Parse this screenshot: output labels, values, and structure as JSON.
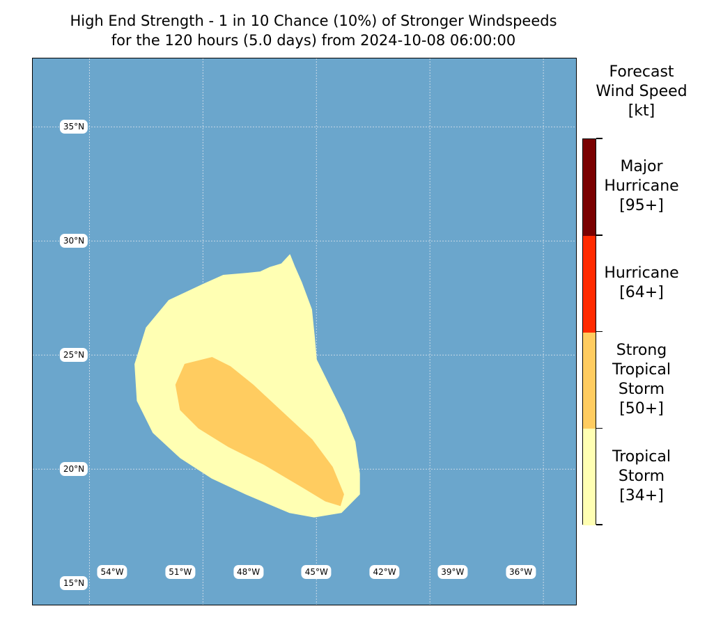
{
  "title": {
    "line1": "High End Strength - 1 in 10 Chance (10%) of Stronger Windspeeds",
    "line2": "for the 120 hours (5.0 days) from 2024-10-08 06:00:00"
  },
  "map": {
    "ocean_color": "#6ba6cc",
    "gridline_color": "#c9d9e6",
    "lat_labels": [
      "35°N",
      "30°N",
      "25°N",
      "20°N",
      "15°N"
    ],
    "lon_labels": [
      "54°W",
      "51°W",
      "48°W",
      "45°W",
      "42°W",
      "39°W",
      "36°W"
    ],
    "lat_range": [
      14.0,
      38.0
    ],
    "lon_range": [
      57.5,
      33.5
    ],
    "wind_areas": [
      {
        "category": "Tropical Storm [34+]",
        "color": "#ffffb3",
        "polygon_lonlat": [
          [
            48.06,
            28.59
          ],
          [
            47.47,
            28.65
          ],
          [
            47.07,
            28.84
          ],
          [
            46.54,
            29.0
          ],
          [
            46.17,
            29.4
          ],
          [
            45.97,
            28.9
          ],
          [
            45.66,
            28.2
          ],
          [
            45.21,
            27.0
          ],
          [
            45.09,
            25.8
          ],
          [
            45.0,
            24.8
          ],
          [
            44.4,
            23.6
          ],
          [
            43.8,
            22.4
          ],
          [
            43.3,
            21.2
          ],
          [
            43.1,
            19.8
          ],
          [
            43.1,
            18.9
          ],
          [
            43.9,
            18.1
          ],
          [
            45.1,
            17.9
          ],
          [
            46.2,
            18.1
          ],
          [
            48.1,
            18.9
          ],
          [
            49.6,
            19.6
          ],
          [
            51.0,
            20.5
          ],
          [
            52.2,
            21.6
          ],
          [
            52.9,
            23.0
          ],
          [
            53.0,
            24.6
          ],
          [
            52.5,
            26.2
          ],
          [
            51.5,
            27.4
          ],
          [
            50.0,
            28.1
          ],
          [
            49.1,
            28.5
          ]
        ]
      },
      {
        "category": "Strong Tropical Storm [50+]",
        "color": "#ffcc60",
        "polygon_lonlat": [
          [
            49.6,
            24.9
          ],
          [
            48.8,
            24.5
          ],
          [
            47.8,
            23.7
          ],
          [
            46.5,
            22.5
          ],
          [
            45.2,
            21.3
          ],
          [
            44.3,
            20.1
          ],
          [
            43.8,
            18.9
          ],
          [
            43.95,
            18.4
          ],
          [
            44.6,
            18.6
          ],
          [
            45.6,
            19.2
          ],
          [
            47.3,
            20.2
          ],
          [
            48.9,
            21.0
          ],
          [
            50.2,
            21.8
          ],
          [
            51.0,
            22.6
          ],
          [
            51.2,
            23.7
          ],
          [
            50.8,
            24.6
          ]
        ]
      }
    ]
  },
  "legend": {
    "title_lines": [
      "Forecast",
      "Wind Speed",
      "[kt]"
    ],
    "categories": [
      {
        "lines": [
          "Major",
          "Hurricane",
          "[95+]"
        ],
        "color": "#7a0000"
      },
      {
        "lines": [
          "Hurricane",
          "[64+]"
        ],
        "color": "#ff2a00"
      },
      {
        "lines": [
          "Strong",
          "Tropical",
          "Storm",
          "[50+]"
        ],
        "color": "#ffcc60"
      },
      {
        "lines": [
          "Tropical",
          "Storm",
          "[34+]"
        ],
        "color": "#ffffb3"
      }
    ]
  }
}
